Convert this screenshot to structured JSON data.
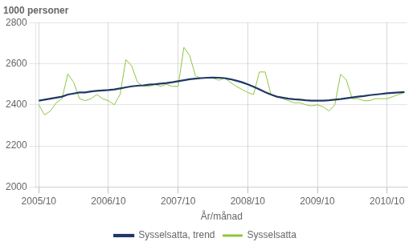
{
  "chart_data": {
    "type": "line",
    "title": "1000 personer",
    "xlabel": "År/månad",
    "categories": [
      "2005/10",
      null,
      null,
      null,
      null,
      null,
      null,
      null,
      null,
      null,
      null,
      null,
      "2006/10",
      null,
      null,
      null,
      null,
      null,
      null,
      null,
      null,
      null,
      null,
      null,
      "2007/10",
      null,
      null,
      null,
      null,
      null,
      null,
      null,
      null,
      null,
      null,
      null,
      "2008/10",
      null,
      null,
      null,
      null,
      null,
      null,
      null,
      null,
      null,
      null,
      null,
      "2009/10",
      null,
      null,
      null,
      null,
      null,
      null,
      null,
      null,
      null,
      null,
      null,
      "2010/10",
      null,
      null,
      null
    ],
    "series": [
      {
        "name": "Sysselsatta",
        "color": "#8dc63f",
        "values": [
          2400,
          2350,
          2370,
          2410,
          2430,
          2550,
          2510,
          2430,
          2420,
          2430,
          2450,
          2430,
          2420,
          2400,
          2450,
          2620,
          2590,
          2510,
          2490,
          2490,
          2500,
          2490,
          2500,
          2490,
          2490,
          2680,
          2640,
          2540,
          2530,
          2530,
          2530,
          2520,
          2530,
          2510,
          2490,
          2475,
          2460,
          2450,
          2560,
          2560,
          2450,
          2440,
          2430,
          2420,
          2410,
          2410,
          2400,
          2395,
          2400,
          2390,
          2370,
          2400,
          2550,
          2520,
          2430,
          2430,
          2420,
          2420,
          2430,
          2430,
          2430,
          2440,
          2450,
          2460
        ]
      },
      {
        "name": "Sysselsatta, trend",
        "color": "#1f3864",
        "values": [
          2420,
          2425,
          2430,
          2435,
          2440,
          2450,
          2455,
          2460,
          2460,
          2465,
          2468,
          2470,
          2472,
          2475,
          2480,
          2485,
          2490,
          2493,
          2495,
          2498,
          2500,
          2503,
          2506,
          2510,
          2515,
          2520,
          2525,
          2528,
          2530,
          2532,
          2533,
          2532,
          2530,
          2525,
          2518,
          2510,
          2500,
          2488,
          2475,
          2462,
          2450,
          2440,
          2435,
          2430,
          2427,
          2425,
          2422,
          2420,
          2420,
          2420,
          2422,
          2425,
          2428,
          2432,
          2436,
          2440,
          2443,
          2447,
          2450,
          2453,
          2456,
          2458,
          2460,
          2462
        ]
      }
    ],
    "ylim": [
      2000,
      2800
    ],
    "yticks": [
      2000,
      2200,
      2400,
      2600,
      2800
    ],
    "grid": true,
    "legend": "bottom"
  }
}
